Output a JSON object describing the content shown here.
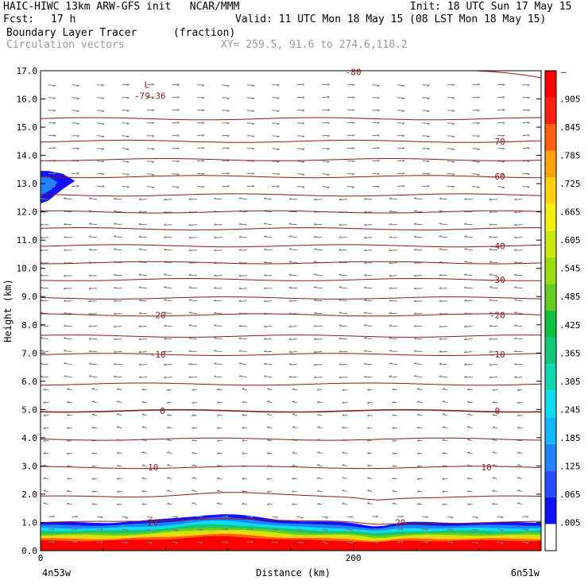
{
  "header": {
    "model": "HAIC-HIWC 13km ARW-GFS init   NCAR/MMM",
    "init": "Init: 18 UTC Sun 17 May 15",
    "fcst_label": "Fcst:",
    "fcst_value": "17 h",
    "valid": "Valid: 11 UTC Mon 18 May 15 (08 LST Mon 18 May 15)",
    "field_name": "Boundary Layer Tracer",
    "field_units": "(fraction)",
    "vectors_label": "Circulation vectors",
    "xy_label": "XY= 259.5, 91.6 to 274.6,110.2"
  },
  "chart_data": {
    "type": "heatmap",
    "xlabel": "Distance (km)",
    "ylabel": "Height (km)",
    "xlim": [
      0,
      320
    ],
    "ylim": [
      0,
      17
    ],
    "x_ticks": [
      {
        "value": 0,
        "label": "0"
      },
      {
        "value": 200,
        "label": "200"
      }
    ],
    "y_ticks": [
      "0.0",
      "1.0",
      "2.0",
      "3.0",
      "4.0",
      "5.0",
      "6.0",
      "7.0",
      "8.0",
      "9.0",
      "10.0",
      "11.0",
      "12.0",
      "13.0",
      "14.0",
      "15.0",
      "16.0",
      "17.0"
    ],
    "endpoint_labels": {
      "left": "4n53w",
      "right": "6n51w"
    },
    "colorbar": {
      "labels": [
        "0.005",
        "0.065",
        "0.125",
        "0.185",
        "0.245",
        "0.305",
        "0.365",
        "0.425",
        "0.485",
        "0.545",
        "0.605",
        "0.665",
        "0.725",
        "0.785",
        "0.845",
        "0.905"
      ],
      "display": [
        ".005",
        ".065",
        ".125",
        ".185",
        ".245",
        ".305",
        ".365",
        ".425",
        ".485",
        ".545",
        ".605",
        ".665",
        ".725",
        ".785",
        ".845",
        ".905"
      ],
      "top_mark": "–",
      "colors": [
        "#ffffff",
        "#1010ff",
        "#2a4bff",
        "#1f84ff",
        "#12b8ff",
        "#10dcf0",
        "#10d9b0",
        "#12c878",
        "#10c040",
        "#66cc22",
        "#99dd10",
        "#c8e810",
        "#f2f010",
        "#ffd010",
        "#ffa010",
        "#ff6010",
        "#ff2010",
        "#ff0000"
      ]
    },
    "temperature_contours": [
      {
        "label": "20",
        "height": 1.0
      },
      {
        "label": "10",
        "height": 2.95
      },
      {
        "label": "0",
        "height": 4.95
      },
      {
        "label": "-10",
        "height": 6.95
      },
      {
        "label": "-20",
        "height": 8.35
      },
      {
        "label": "-30",
        "height": 9.6
      },
      {
        "label": "-40",
        "height": 10.8
      },
      {
        "label": "-60",
        "height": 13.25
      },
      {
        "label": "-70",
        "height": 14.5
      }
    ],
    "low_marker": {
      "label": "L",
      "value": "-79.36"
    },
    "top_label": "-80"
  }
}
